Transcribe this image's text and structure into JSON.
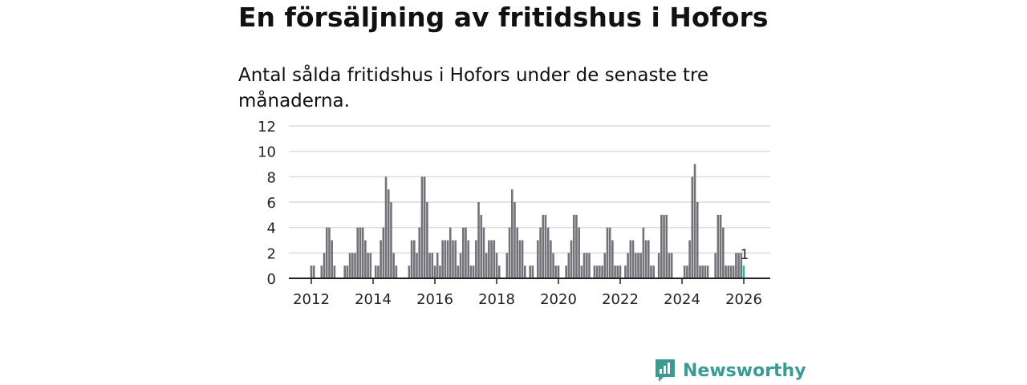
{
  "title": "En försäljning av fritidshus i Hofors",
  "subtitle": "Antal sålda fritidshus i Hofors under de senaste tre månaderna.",
  "brand": "Newsworthy",
  "colors": {
    "bar": "#737279",
    "highlight": "#2bb5a6",
    "brand": "#3a9b94"
  },
  "chart_data": {
    "type": "bar",
    "title": "En försäljning av fritidshus i Hofors",
    "xlabel": "",
    "ylabel": "",
    "ylim": [
      0,
      12
    ],
    "yticks": [
      0,
      2,
      4,
      6,
      8,
      10,
      12
    ],
    "xticks": [
      "2012",
      "2014",
      "2016",
      "2018",
      "2020",
      "2022",
      "2024",
      "2026"
    ],
    "start": "2012-01",
    "frequency": "monthly",
    "values": [
      1,
      1,
      0,
      0,
      1,
      2,
      4,
      4,
      3,
      1,
      0,
      0,
      0,
      1,
      1,
      2,
      2,
      2,
      4,
      4,
      4,
      3,
      2,
      2,
      0,
      1,
      1,
      3,
      4,
      8,
      7,
      6,
      2,
      1,
      0,
      0,
      0,
      0,
      1,
      3,
      3,
      2,
      4,
      8,
      8,
      6,
      2,
      2,
      1,
      2,
      1,
      3,
      3,
      3,
      4,
      3,
      3,
      1,
      2,
      4,
      4,
      3,
      1,
      1,
      3,
      6,
      5,
      4,
      2,
      3,
      3,
      3,
      2,
      1,
      0,
      0,
      2,
      4,
      7,
      6,
      4,
      3,
      3,
      1,
      0,
      1,
      1,
      0,
      3,
      4,
      5,
      5,
      4,
      3,
      2,
      1,
      1,
      0,
      0,
      1,
      2,
      3,
      5,
      5,
      4,
      1,
      2,
      2,
      2,
      0,
      1,
      1,
      1,
      1,
      2,
      4,
      4,
      3,
      1,
      1,
      1,
      0,
      1,
      2,
      3,
      3,
      2,
      2,
      2,
      4,
      3,
      3,
      1,
      1,
      0,
      2,
      5,
      5,
      5,
      2,
      2,
      0,
      0,
      0,
      0,
      1,
      1,
      3,
      8,
      9,
      6,
      1,
      1,
      1,
      1,
      0,
      0,
      2,
      5,
      5,
      4,
      1,
      1,
      1,
      1,
      2,
      2,
      2,
      1
    ],
    "highlight_label": "1"
  }
}
